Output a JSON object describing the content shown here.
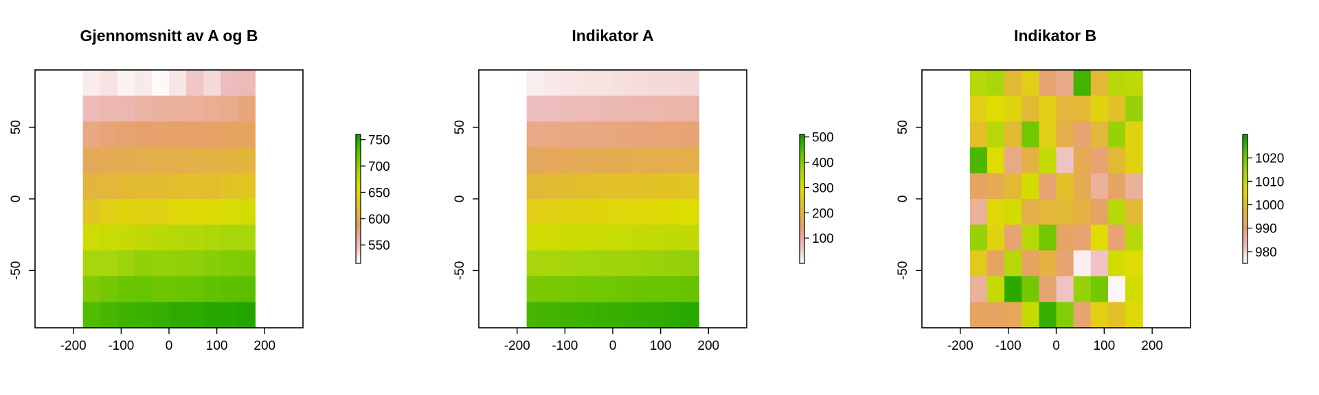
{
  "palette": {
    "stops": [
      "#ffffff",
      "#edbcbc",
      "#e6a06a",
      "#e2bb30",
      "#dede00",
      "#a6d60b",
      "#60c200",
      "#0a9a00"
    ],
    "note": "terrain-like scale: low values pale pink, high values dark green"
  },
  "chart_data": [
    {
      "type": "heatmap",
      "title": "Gjennomsnitt av A og B",
      "xlabel": "",
      "ylabel": "",
      "xlim": [
        -280,
        280
      ],
      "ylim": [
        -90,
        90
      ],
      "x_ticks": [
        -200,
        -100,
        0,
        100,
        200
      ],
      "y_ticks": [
        -50,
        0,
        50
      ],
      "x_edges": [
        -180,
        -144,
        -108,
        -72,
        -36,
        0,
        36,
        72,
        108,
        144,
        180
      ],
      "y_edges": [
        90,
        72,
        54,
        36,
        18,
        0,
        -18,
        -36,
        -54,
        -72,
        -90
      ],
      "z_range": [
        515,
        760
      ],
      "legend_ticks": [
        550,
        600,
        650,
        700,
        750
      ],
      "values": [
        [
          525,
          530,
          522,
          526,
          518,
          528,
          545,
          535,
          550,
          552
        ],
        [
          552,
          555,
          556,
          560,
          562,
          563,
          565,
          567,
          570,
          578
        ],
        [
          575,
          580,
          582,
          585,
          584,
          586,
          585,
          588,
          590,
          592
        ],
        [
          595,
          598,
          600,
          602,
          605,
          603,
          606,
          608,
          610,
          612
        ],
        [
          612,
          615,
          618,
          620,
          620,
          622,
          625,
          623,
          628,
          630
        ],
        [
          630,
          640,
          645,
          642,
          643,
          648,
          650,
          652,
          660,
          662
        ],
        [
          665,
          668,
          670,
          675,
          678,
          680,
          682,
          685,
          690,
          688
        ],
        [
          688,
          690,
          695,
          700,
          698,
          700,
          702,
          705,
          708,
          710
        ],
        [
          710,
          715,
          720,
          722,
          718,
          720,
          722,
          725,
          726,
          728
        ],
        [
          730,
          735,
          738,
          740,
          742,
          745,
          745,
          748,
          748,
          750
        ]
      ]
    },
    {
      "type": "heatmap",
      "title": "Indikator A",
      "xlabel": "",
      "ylabel": "",
      "xlim": [
        -280,
        280
      ],
      "ylim": [
        -90,
        90
      ],
      "x_ticks": [
        -200,
        -100,
        0,
        100,
        200
      ],
      "y_ticks": [
        -50,
        0,
        50
      ],
      "x_edges": [
        -180,
        -144,
        -108,
        -72,
        -36,
        0,
        36,
        72,
        108,
        144,
        180
      ],
      "y_edges": [
        90,
        72,
        54,
        36,
        18,
        0,
        -18,
        -36,
        -54,
        -72,
        -90
      ],
      "z_range": [
        0,
        510
      ],
      "legend_ticks": [
        100,
        200,
        300,
        400,
        500
      ],
      "values": [
        [
          20,
          25,
          28,
          30,
          32,
          35,
          38,
          40,
          42,
          45
        ],
        [
          70,
          72,
          75,
          77,
          80,
          82,
          85,
          87,
          88,
          90
        ],
        [
          120,
          122,
          124,
          126,
          128,
          130,
          132,
          134,
          136,
          138
        ],
        [
          165,
          168,
          170,
          172,
          175,
          177,
          180,
          182,
          184,
          186
        ],
        [
          210,
          215,
          220,
          225,
          228,
          230,
          232,
          235,
          238,
          240
        ],
        [
          260,
          265,
          268,
          270,
          272,
          275,
          278,
          280,
          285,
          290
        ],
        [
          310,
          312,
          315,
          318,
          320,
          322,
          325,
          328,
          330,
          332
        ],
        [
          360,
          362,
          365,
          368,
          370,
          372,
          375,
          378,
          380,
          382
        ],
        [
          410,
          412,
          415,
          418,
          420,
          422,
          425,
          428,
          430,
          432
        ],
        [
          460,
          462,
          465,
          468,
          470,
          472,
          475,
          478,
          480,
          485
        ]
      ]
    },
    {
      "type": "heatmap",
      "title": "Indikator B",
      "xlabel": "",
      "ylabel": "",
      "xlim": [
        -280,
        280
      ],
      "ylim": [
        -90,
        90
      ],
      "x_ticks": [
        -200,
        -100,
        0,
        100,
        200
      ],
      "y_ticks": [
        -50,
        0,
        50
      ],
      "x_edges": [
        -180,
        -144,
        -108,
        -72,
        -36,
        0,
        36,
        72,
        108,
        144,
        180
      ],
      "y_edges": [
        90,
        72,
        54,
        36,
        18,
        0,
        -18,
        -36,
        -54,
        -72,
        -90
      ],
      "z_range": [
        975,
        1030
      ],
      "legend_ticks": [
        980,
        990,
        1000,
        1010,
        1020
      ],
      "values": [
        [
          1012,
          1014,
          998,
          1003,
          990,
          988,
          1025,
          998,
          1012,
          1011
        ],
        [
          1003,
          1006,
          1004,
          998,
          1003,
          997,
          998,
          1004,
          1000,
          1016
        ],
        [
          1000,
          1012,
          998,
          1020,
          1003,
          995,
          990,
          997,
          1016,
          1004
        ],
        [
          1024,
          1006,
          988,
          996,
          1010,
          982,
          994,
          990,
          998,
          1004
        ],
        [
          992,
          994,
          998,
          1008,
          990,
          1000,
          994,
          986,
          992,
          986
        ],
        [
          986,
          1005,
          1008,
          995,
          997,
          998,
          996,
          992,
          1012,
          998
        ],
        [
          1016,
          1004,
          990,
          1012,
          1020,
          992,
          990,
          1006,
          990,
          1012
        ],
        [
          1002,
          992,
          1012,
          992,
          996,
          990,
          977,
          982,
          1008,
          1006
        ],
        [
          986,
          1010,
          1027,
          1020,
          990,
          982,
          1016,
          1020,
          976,
          1008
        ],
        [
          992,
          992,
          993,
          1010,
          1026,
          1018,
          990,
          1003,
          1000,
          1005
        ]
      ]
    }
  ]
}
